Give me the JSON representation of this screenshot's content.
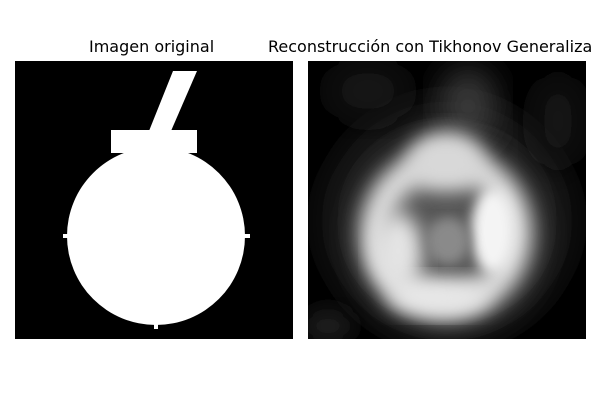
{
  "figure": {
    "panels": [
      {
        "title": "Imagen original",
        "content": "binary-silhouette"
      },
      {
        "title": "Reconstrucción con Tikhonov Generaliza",
        "content": "blurred-grayscale-reconstruction"
      }
    ],
    "colors": {
      "background": "#000000",
      "foreground": "#ffffff"
    }
  }
}
